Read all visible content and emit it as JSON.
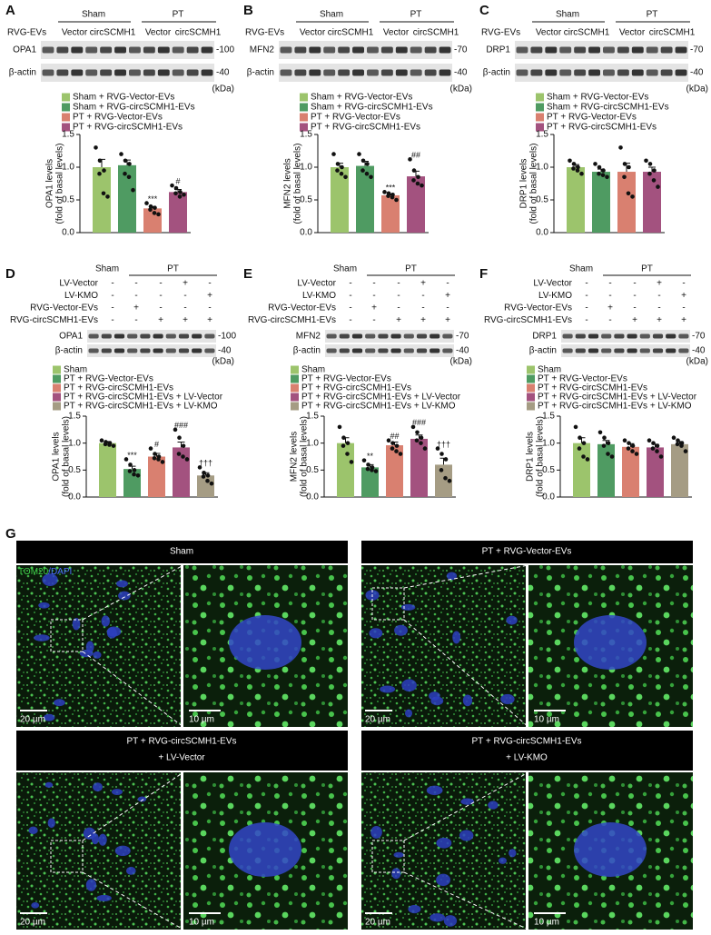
{
  "chart_data": [
    {
      "type": "bar",
      "panel": "A",
      "ylabel": [
        "OPA1 levels",
        "(fold of basal levels)"
      ],
      "categories": [
        "Sham + RVG-Vector-EVs",
        "Sham + RVG-circSCMH1-EVs",
        "PT + RVG-Vector-EVs",
        "PT + RVG-circSCMH1-EVs"
      ],
      "colors": [
        "#9cc46c",
        "#4f9b62",
        "#d98070",
        "#a3527f"
      ],
      "values": [
        1.0,
        1.03,
        0.37,
        0.62
      ],
      "errors": [
        0.12,
        0.08,
        0.03,
        0.04
      ],
      "points": [
        [
          1.3,
          1.1,
          0.95,
          0.9,
          0.6,
          0.55
        ],
        [
          1.2,
          1.1,
          1.05,
          0.9,
          0.85,
          0.65
        ],
        [
          0.45,
          0.4,
          0.38,
          0.35,
          0.3,
          0.28
        ],
        [
          0.72,
          0.68,
          0.62,
          0.6,
          0.55,
          0.58
        ]
      ],
      "annotations": [
        null,
        null,
        "***",
        "#"
      ],
      "ylim": [
        0,
        1.5
      ],
      "yticks": [
        {
          "value": 0,
          "label": "0.0"
        },
        0.5,
        {
          "value": 1,
          "label": "1.0"
        },
        1.5
      ],
      "blot": {
        "group_label": "RVG-EVs",
        "groups": [
          "Sham",
          "PT"
        ],
        "lanes": [
          "Vector",
          "circSCMH1",
          "Vector",
          "circSCMH1"
        ],
        "rows": [
          {
            "label": "OPA1",
            "marker": "-100"
          },
          {
            "label": "β-actin",
            "marker": "-40"
          }
        ],
        "unit": "(kDa)"
      }
    },
    {
      "type": "bar",
      "panel": "B",
      "ylabel": [
        "MFN2 levels",
        "(fold of basal levels)"
      ],
      "categories": [
        "Sham + RVG-Vector-EVs",
        "Sham + RVG-circSCMH1-EVs",
        "PT + RVG-Vector-EVs",
        "PT + RVG-circSCMH1-EVs"
      ],
      "colors": [
        "#9cc46c",
        "#4f9b62",
        "#d98070",
        "#a3527f"
      ],
      "values": [
        1.0,
        1.02,
        0.57,
        0.86
      ],
      "errors": [
        0.06,
        0.07,
        0.02,
        0.08
      ],
      "points": [
        [
          1.2,
          1.05,
          1.0,
          0.95,
          0.9,
          0.85
        ],
        [
          1.2,
          1.1,
          1.05,
          0.95,
          0.9,
          0.85
        ],
        [
          0.62,
          0.6,
          0.58,
          0.56,
          0.54,
          0.5
        ],
        [
          1.12,
          0.95,
          0.85,
          0.8,
          0.75,
          0.72
        ]
      ],
      "annotations": [
        null,
        null,
        "***",
        "##"
      ],
      "ylim": [
        0,
        1.5
      ],
      "yticks": [
        {
          "value": 0,
          "label": "0.0"
        },
        0.5,
        {
          "value": 1,
          "label": "1.0"
        },
        1.5
      ],
      "blot": {
        "group_label": "RVG-EVs",
        "groups": [
          "Sham",
          "PT"
        ],
        "lanes": [
          "Vector",
          "circSCMH1",
          "Vector",
          "circSCMH1"
        ],
        "rows": [
          {
            "label": "MFN2",
            "marker": "-70"
          },
          {
            "label": "β-actin",
            "marker": "-40"
          }
        ],
        "unit": "(kDa)"
      }
    },
    {
      "type": "bar",
      "panel": "C",
      "ylabel": [
        "DRP1 levels",
        "(fold of basal levels)"
      ],
      "categories": [
        "Sham + RVG-Vector-EVs",
        "Sham + RVG-circSCMH1-EVs",
        "PT + RVG-Vector-EVs",
        "PT + RVG-circSCMH1-EVs"
      ],
      "colors": [
        "#9cc46c",
        "#4f9b62",
        "#d98070",
        "#a3527f"
      ],
      "values": [
        1.0,
        0.93,
        0.93,
        0.93
      ],
      "errors": [
        0.04,
        0.04,
        0.13,
        0.07
      ],
      "points": [
        [
          1.1,
          1.05,
          1.0,
          0.98,
          0.95,
          0.9
        ],
        [
          1.05,
          1.0,
          0.95,
          0.9,
          0.88,
          0.85
        ],
        [
          1.3,
          1.05,
          1.0,
          0.85,
          0.6,
          0.55
        ],
        [
          1.1,
          1.05,
          0.95,
          0.9,
          0.8,
          0.7
        ]
      ],
      "annotations": [
        null,
        null,
        null,
        null
      ],
      "ylim": [
        0,
        1.5
      ],
      "yticks": [
        {
          "value": 0,
          "label": "0.0"
        },
        0.5,
        {
          "value": 1,
          "label": "1.0"
        },
        1.5
      ],
      "blot": {
        "group_label": "RVG-EVs",
        "groups": [
          "Sham",
          "PT"
        ],
        "lanes": [
          "Vector",
          "circSCMH1",
          "Vector",
          "circSCMH1"
        ],
        "rows": [
          {
            "label": "DRP1",
            "marker": "-70"
          },
          {
            "label": "β-actin",
            "marker": "-40"
          }
        ],
        "unit": "(kDa)"
      }
    },
    {
      "type": "bar",
      "panel": "D",
      "ylabel": [
        "OPA1 levels",
        "(fold of basal levels)"
      ],
      "categories": [
        "Sham",
        "PT + RVG-Vector-EVs",
        "PT + RVG-circSCMH1-EVs",
        "PT + RVG-circSCMH1-EVs + LV-Vector",
        "PT + RVG-circSCMH1-EVs + LV-KMO"
      ],
      "colors": [
        "#9cc46c",
        "#4f9b62",
        "#d98070",
        "#a3527f",
        "#a59c84"
      ],
      "values": [
        1.0,
        0.52,
        0.75,
        0.92,
        0.4
      ],
      "errors": [
        0.03,
        0.05,
        0.06,
        0.1,
        0.05
      ],
      "points": [
        [
          1.05,
          1.02,
          1.0,
          0.98,
          0.97,
          0.95
        ],
        [
          0.7,
          0.6,
          0.5,
          0.48,
          0.42,
          0.4
        ],
        [
          0.9,
          0.8,
          0.75,
          0.72,
          0.7,
          0.65
        ],
        [
          1.25,
          1.1,
          0.95,
          0.8,
          0.75,
          0.7
        ],
        [
          0.55,
          0.45,
          0.4,
          0.38,
          0.3,
          0.25
        ]
      ],
      "annotations": [
        null,
        "***",
        "#",
        "###",
        "†††"
      ],
      "ylim": [
        0,
        1.5
      ],
      "yticks": [
        {
          "value": 0,
          "label": "0.0"
        },
        0.5,
        {
          "value": 1,
          "label": "1.0"
        },
        1.5
      ],
      "blot": {
        "groups": [
          "Sham",
          "PT"
        ],
        "conditions": [
          {
            "label": "LV-Vector",
            "signs": [
              "-",
              "-",
              "-",
              "+",
              "-"
            ]
          },
          {
            "label": "LV-KMO",
            "signs": [
              "-",
              "-",
              "-",
              "-",
              "+"
            ]
          },
          {
            "label": "RVG-Vector-EVs",
            "signs": [
              "-",
              "+",
              "-",
              "-",
              "-"
            ]
          },
          {
            "label": "RVG-circSCMH1-EVs",
            "signs": [
              "-",
              "-",
              "+",
              "+",
              "+"
            ]
          }
        ],
        "rows": [
          {
            "label": "OPA1",
            "marker": "-100"
          },
          {
            "label": "β-actin",
            "marker": "-40"
          }
        ],
        "unit": "(kDa)"
      }
    },
    {
      "type": "bar",
      "panel": "E",
      "ylabel": [
        "MFN2 levels",
        "(fold of basal levels)"
      ],
      "categories": [
        "Sham",
        "PT + RVG-Vector-EVs",
        "PT + RVG-circSCMH1-EVs",
        "PT + RVG-circSCMH1-EVs + LV-Vector",
        "PT + RVG-circSCMH1-EVs + LV-KMO"
      ],
      "colors": [
        "#9cc46c",
        "#4f9b62",
        "#d98070",
        "#a3527f",
        "#a59c84"
      ],
      "values": [
        1.0,
        0.55,
        0.96,
        1.08,
        0.6
      ],
      "errors": [
        0.1,
        0.05,
        0.06,
        0.07,
        0.12
      ],
      "points": [
        [
          1.3,
          1.1,
          1.0,
          0.95,
          0.8,
          0.65
        ],
        [
          0.68,
          0.6,
          0.55,
          0.52,
          0.5,
          0.48
        ],
        [
          1.05,
          1.0,
          0.95,
          0.9,
          0.85,
          0.8
        ],
        [
          1.3,
          1.2,
          1.1,
          1.05,
          1.0,
          0.9
        ],
        [
          0.9,
          0.8,
          0.7,
          0.5,
          0.35,
          0.3
        ]
      ],
      "annotations": [
        null,
        "**",
        "##",
        "###",
        "†††"
      ],
      "ylim": [
        0,
        1.5
      ],
      "yticks": [
        {
          "value": 0,
          "label": "0.0"
        },
        0.5,
        {
          "value": 1,
          "label": "1.0"
        },
        1.5
      ],
      "blot": {
        "groups": [
          "Sham",
          "PT"
        ],
        "conditions": [
          {
            "label": "LV-Vector",
            "signs": [
              "-",
              "-",
              "-",
              "+",
              "-"
            ]
          },
          {
            "label": "LV-KMO",
            "signs": [
              "-",
              "-",
              "-",
              "-",
              "+"
            ]
          },
          {
            "label": "RVG-Vector-EVs",
            "signs": [
              "-",
              "+",
              "-",
              "-",
              "-"
            ]
          },
          {
            "label": "RVG-circSCMH1-EVs",
            "signs": [
              "-",
              "-",
              "+",
              "+",
              "+"
            ]
          }
        ],
        "rows": [
          {
            "label": "MFN2",
            "marker": "-70"
          },
          {
            "label": "β-actin",
            "marker": "-40"
          }
        ],
        "unit": "(kDa)"
      }
    },
    {
      "type": "bar",
      "panel": "F",
      "ylabel": [
        "DRP1 levels",
        "(fold of basal levels)"
      ],
      "categories": [
        "Sham",
        "PT + RVG-Vector-EVs",
        "PT + RVG-circSCMH1-EVs",
        "PT + RVG-circSCMH1-EVs + LV-Vector",
        "PT + RVG-circSCMH1-EVs + LV-KMO"
      ],
      "colors": [
        "#9cc46c",
        "#4f9b62",
        "#d98070",
        "#a3527f",
        "#a59c84"
      ],
      "values": [
        1.0,
        0.98,
        0.93,
        0.92,
        0.98
      ],
      "errors": [
        0.1,
        0.07,
        0.06,
        0.06,
        0.05
      ],
      "points": [
        [
          1.3,
          1.1,
          1.0,
          0.9,
          0.75,
          0.7
        ],
        [
          1.2,
          1.1,
          1.0,
          0.95,
          0.8,
          0.75
        ],
        [
          1.05,
          1.0,
          0.95,
          0.9,
          0.85,
          0.8
        ],
        [
          1.05,
          1.0,
          0.95,
          0.9,
          0.85,
          0.75
        ],
        [
          1.1,
          1.05,
          1.0,
          0.98,
          0.95,
          0.85
        ]
      ],
      "annotations": [
        null,
        null,
        null,
        null,
        null
      ],
      "ylim": [
        0,
        1.5
      ],
      "yticks": [
        {
          "value": 0,
          "label": "0.0"
        },
        0.5,
        {
          "value": 1,
          "label": "1.0"
        },
        1.5
      ],
      "blot": {
        "groups": [
          "Sham",
          "PT"
        ],
        "conditions": [
          {
            "label": "LV-Vector",
            "signs": [
              "-",
              "-",
              "-",
              "+",
              "-"
            ]
          },
          {
            "label": "LV-KMO",
            "signs": [
              "-",
              "-",
              "-",
              "-",
              "+"
            ]
          },
          {
            "label": "RVG-Vector-EVs",
            "signs": [
              "-",
              "+",
              "-",
              "-",
              "-"
            ]
          },
          {
            "label": "RVG-circSCMH1-EVs",
            "signs": [
              "-",
              "-",
              "+",
              "+",
              "+"
            ]
          }
        ],
        "rows": [
          {
            "label": "DRP1",
            "marker": "-70"
          },
          {
            "label": "β-actin",
            "marker": "-40"
          }
        ],
        "unit": "(kDa)"
      }
    }
  ],
  "microscopy": {
    "panel": "G",
    "stain": [
      "TOM20",
      "/DAPI"
    ],
    "images": [
      {
        "title": [
          "Sham"
        ],
        "scale_overview": "20 µm",
        "scale_zoom": "10 µm"
      },
      {
        "title": [
          "PT + RVG-Vector-EVs"
        ],
        "scale_overview": "20 µm",
        "scale_zoom": "10 µm"
      },
      {
        "title": [
          "PT + RVG-circSCMH1-EVs",
          "+ LV-Vector"
        ],
        "scale_overview": "20 µm",
        "scale_zoom": "10 µm"
      },
      {
        "title": [
          "PT + RVG-circSCMH1-EVs",
          "+ LV-KMO"
        ],
        "scale_overview": "20 µm",
        "scale_zoom": "10 µm"
      }
    ]
  }
}
